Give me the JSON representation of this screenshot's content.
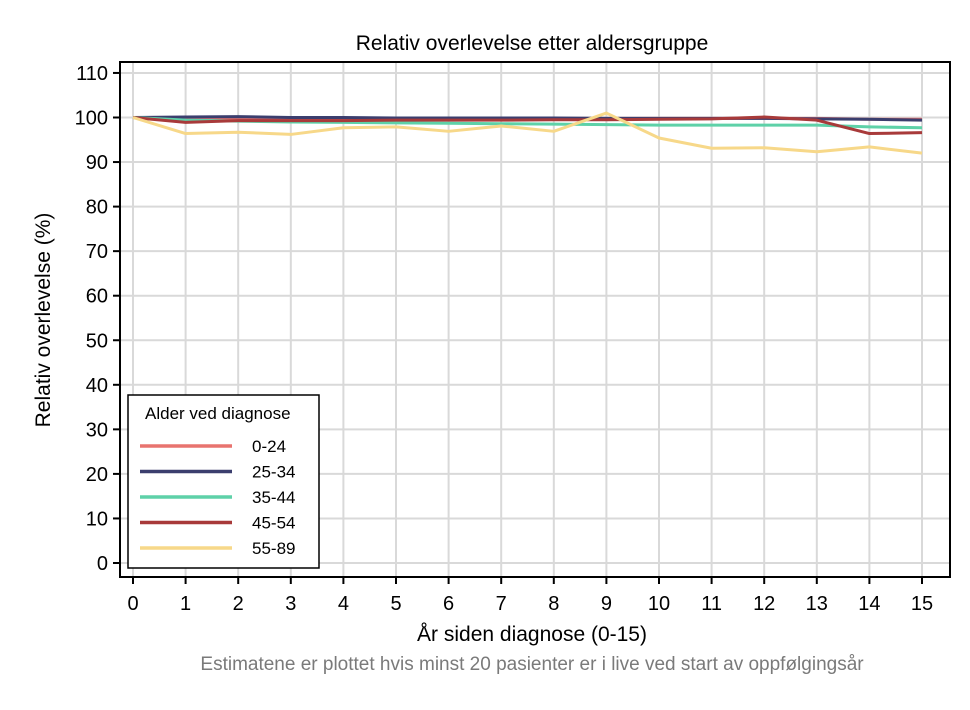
{
  "chart_data": {
    "type": "line",
    "title": "Relativ overlevelse etter aldersgruppe",
    "xlabel": "År siden diagnose (0-15)",
    "ylabel": "Relativ overlevelse (%)",
    "footnote": "Estimatene er plottet hvis minst 20 pasienter er i live ved start av oppfølgingsår",
    "x": [
      0,
      1,
      2,
      3,
      4,
      5,
      6,
      7,
      8,
      9,
      10,
      11,
      12,
      13,
      14,
      15
    ],
    "xticks": [
      "0",
      "1",
      "2",
      "3",
      "4",
      "5",
      "6",
      "7",
      "8",
      "9",
      "10",
      "11",
      "12",
      "13",
      "14",
      "15"
    ],
    "yticks": [
      "0",
      "10",
      "20",
      "30",
      "40",
      "50",
      "60",
      "70",
      "80",
      "90",
      "100",
      "110"
    ],
    "xlim": [
      0,
      15
    ],
    "ylim": [
      0,
      110
    ],
    "grid": true,
    "legend_title": "Alder ved diagnose",
    "legend_position": "bottom-left",
    "series": [
      {
        "name": "0-24",
        "color": "#e8736f",
        "values": [
          100,
          99.6,
          99.8,
          99.7,
          99.8,
          99.8,
          99.8,
          99.8,
          99.8,
          99.8,
          99.8,
          99.8,
          99.8,
          99.8,
          99.6,
          99.6
        ]
      },
      {
        "name": "25-34",
        "color": "#3b3e6e",
        "values": [
          100,
          100.1,
          100.2,
          100.0,
          100.0,
          99.9,
          99.9,
          99.9,
          99.9,
          99.8,
          99.8,
          99.8,
          99.8,
          99.7,
          99.6,
          99.4
        ]
      },
      {
        "name": "35-44",
        "color": "#5ed1a8",
        "values": [
          100,
          99.4,
          99.2,
          99.0,
          98.9,
          98.8,
          98.7,
          98.6,
          98.5,
          98.4,
          98.3,
          98.3,
          98.3,
          98.3,
          97.9,
          97.7
        ]
      },
      {
        "name": "45-54",
        "color": "#a83a3a",
        "values": [
          100,
          98.9,
          99.3,
          99.3,
          99.3,
          99.4,
          99.4,
          99.4,
          99.5,
          99.5,
          99.6,
          99.7,
          100.1,
          99.4,
          96.4,
          96.6
        ]
      },
      {
        "name": "55-89",
        "color": "#f7d889",
        "values": [
          100,
          96.4,
          96.7,
          96.2,
          97.7,
          97.9,
          96.9,
          98.1,
          96.9,
          101.0,
          95.4,
          93.1,
          93.2,
          92.3,
          93.4,
          92.0
        ]
      }
    ]
  }
}
